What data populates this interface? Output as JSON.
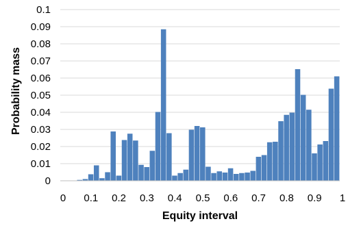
{
  "chart_data": {
    "type": "bar",
    "xlabel": "Equity interval",
    "ylabel": "Probability mass",
    "xlim": [
      0,
      1
    ],
    "ylim": [
      0,
      0.1
    ],
    "x_ticks": [
      "0",
      "0.1",
      "0.2",
      "0.3",
      "0.4",
      "0.5",
      "0.6",
      "0.7",
      "0.8",
      "0.9",
      "1"
    ],
    "y_ticks": [
      "0",
      "0.01",
      "0.02",
      "0.03",
      "0.04",
      "0.05",
      "0.06",
      "0.07",
      "0.08",
      "0.09",
      "0.1"
    ],
    "grid": "horizontal",
    "legend": "none",
    "bar_color": "#4e81bd",
    "bins": 50,
    "values": [
      0,
      0,
      0,
      0.0005,
      0.001,
      0.0038,
      0.009,
      0.0015,
      0.005,
      0.0288,
      0.003,
      0.0238,
      0.0275,
      0.0235,
      0.0093,
      0.008,
      0.0175,
      0.0402,
      0.0885,
      0.0278,
      0.003,
      0.0045,
      0.0065,
      0.0298,
      0.032,
      0.0312,
      0.0082,
      0.0045,
      0.0055,
      0.0048,
      0.0073,
      0.004,
      0.0045,
      0.0048,
      0.0058,
      0.014,
      0.015,
      0.0225,
      0.0228,
      0.0348,
      0.0385,
      0.0398,
      0.0652,
      0.0502,
      0.0415,
      0.016,
      0.0212,
      0.0232,
      0.0538,
      0.061
    ]
  }
}
